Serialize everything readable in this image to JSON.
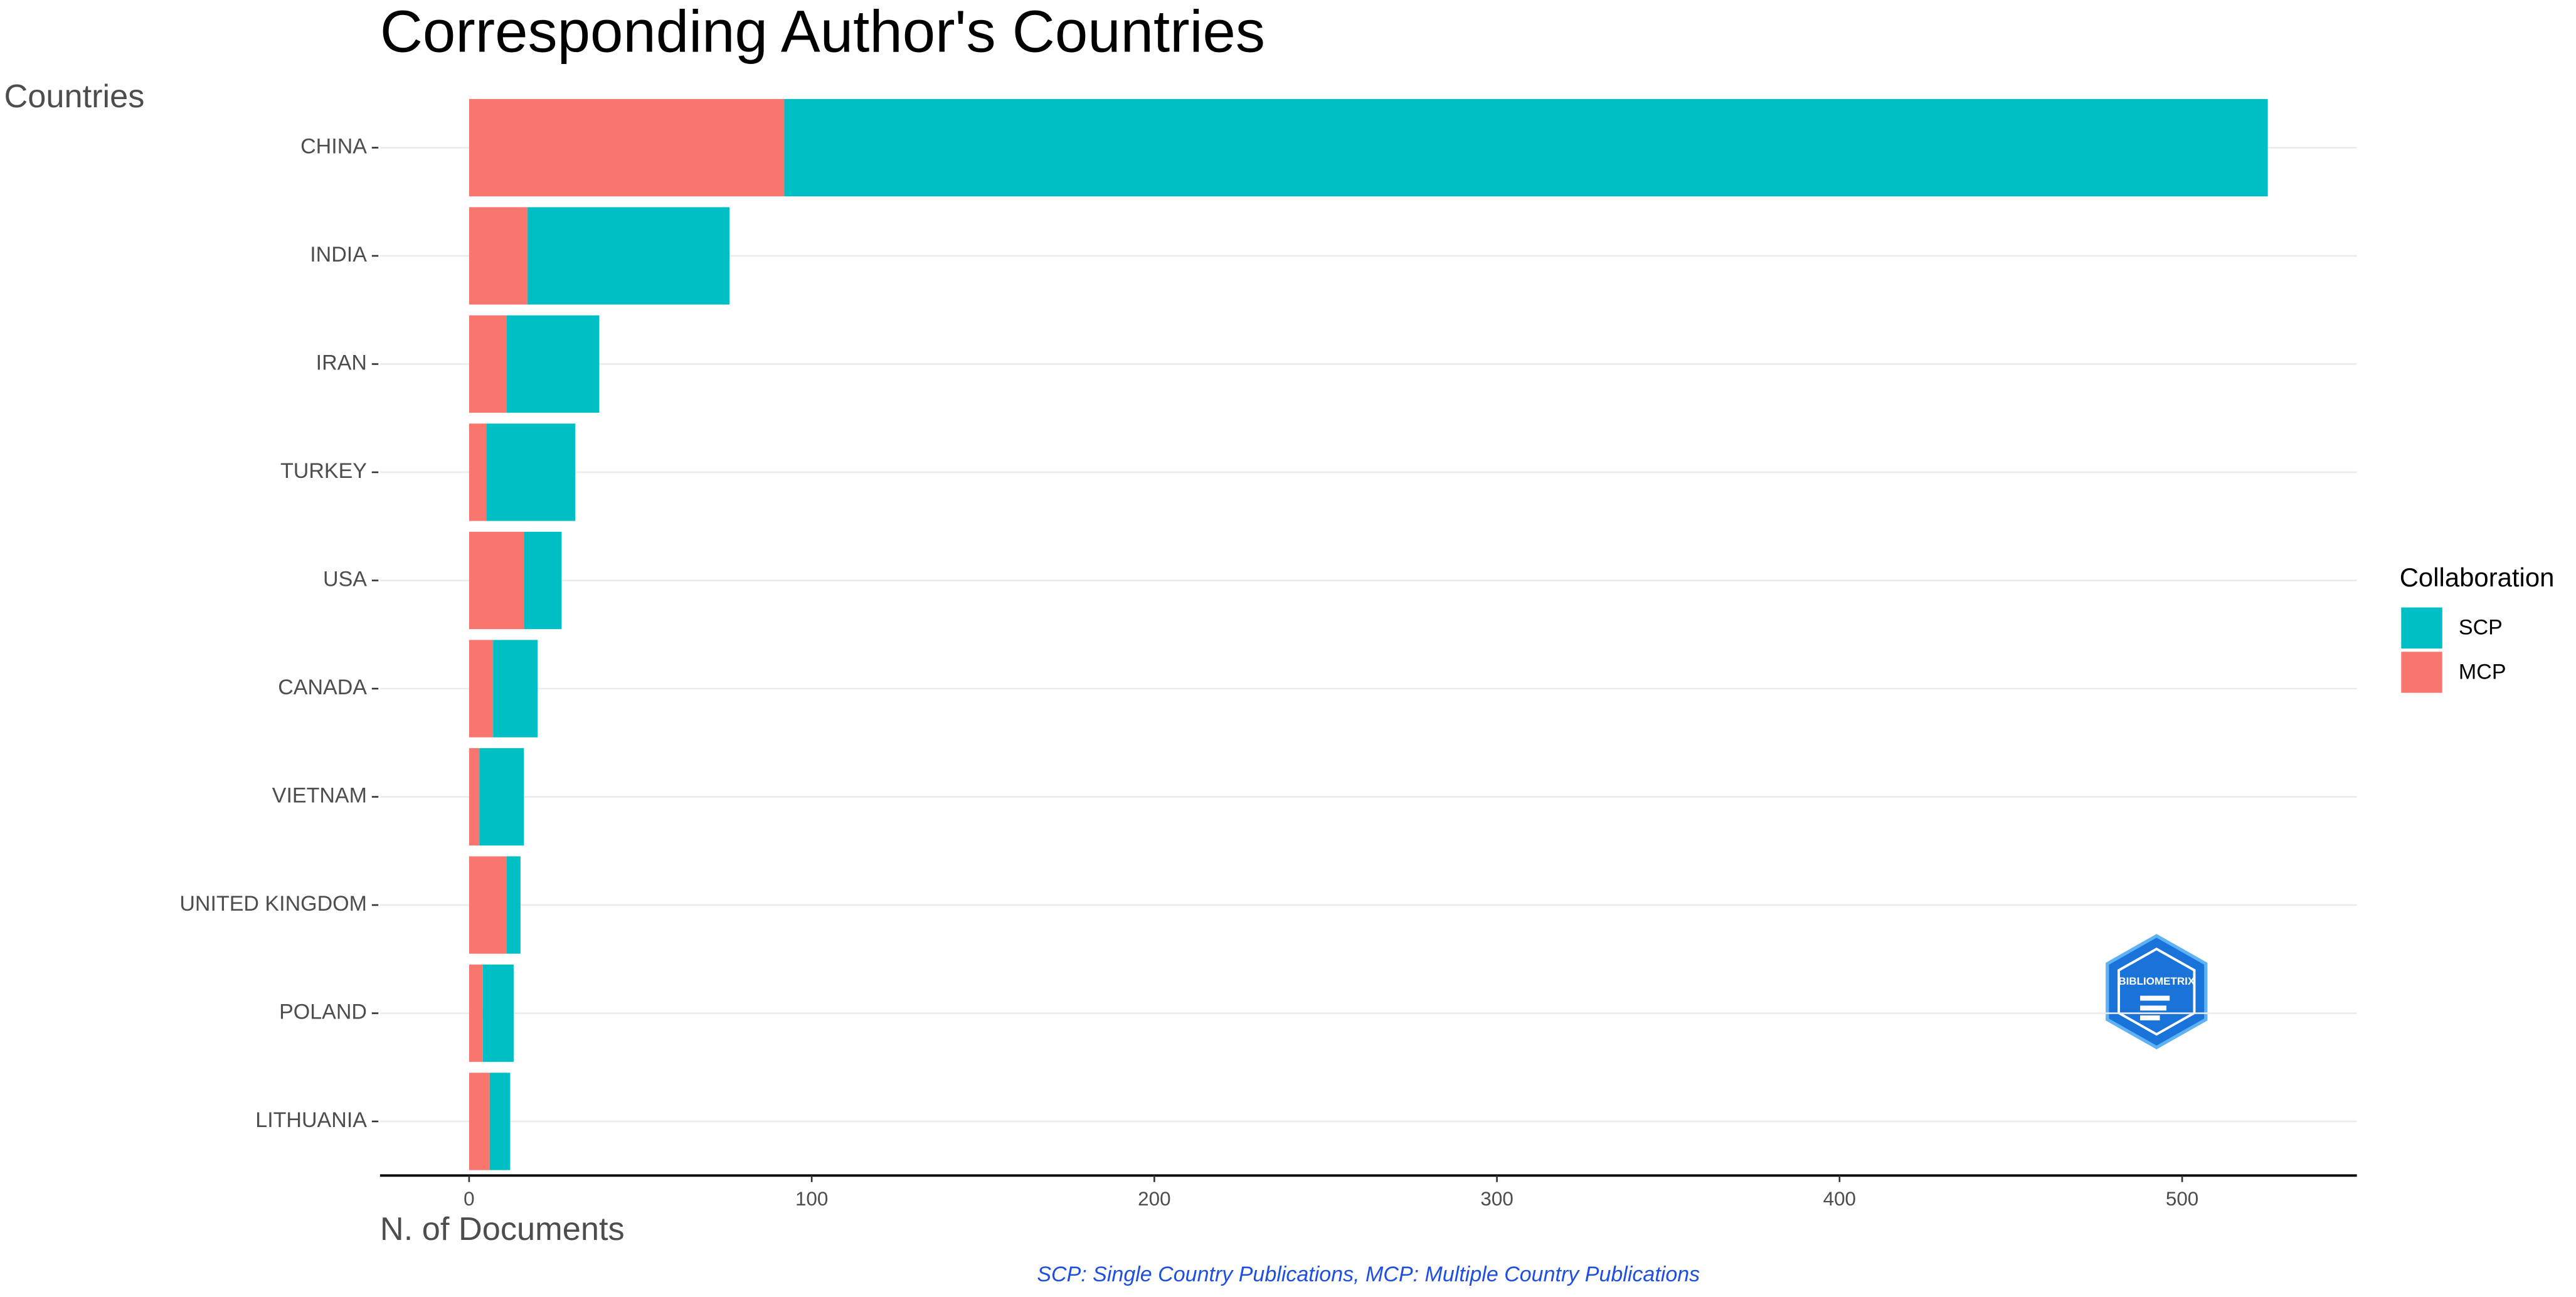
{
  "chart_data": {
    "type": "stacked-barh",
    "title": "Corresponding Author's Countries",
    "y_label": "Countries",
    "x_label": "N. of Documents",
    "caption": "SCP: Single Country Publications, MCP: Multiple Country Publications",
    "legend_title": "Collaboration",
    "legend_position": "right",
    "logo_text": "BIBLIOMETRIX",
    "categories": [
      "CHINA",
      "INDIA",
      "IRAN",
      "TURKEY",
      "USA",
      "CANADA",
      "VIETNAM",
      "UNITED KINGDOM",
      "POLAND",
      "LITHUANIA"
    ],
    "series": [
      {
        "name": "SCP",
        "color": "#00bfc4",
        "values": [
          433,
          59,
          27,
          26,
          11,
          13,
          13,
          4,
          9,
          6
        ]
      },
      {
        "name": "MCP",
        "color": "#f8766d",
        "values": [
          92,
          17,
          11,
          5,
          16,
          7,
          3,
          11,
          4,
          6
        ]
      }
    ],
    "xlim": [
      -26,
      551
    ],
    "xticks": [
      0,
      100,
      200,
      300,
      400,
      500
    ],
    "grid": true
  }
}
